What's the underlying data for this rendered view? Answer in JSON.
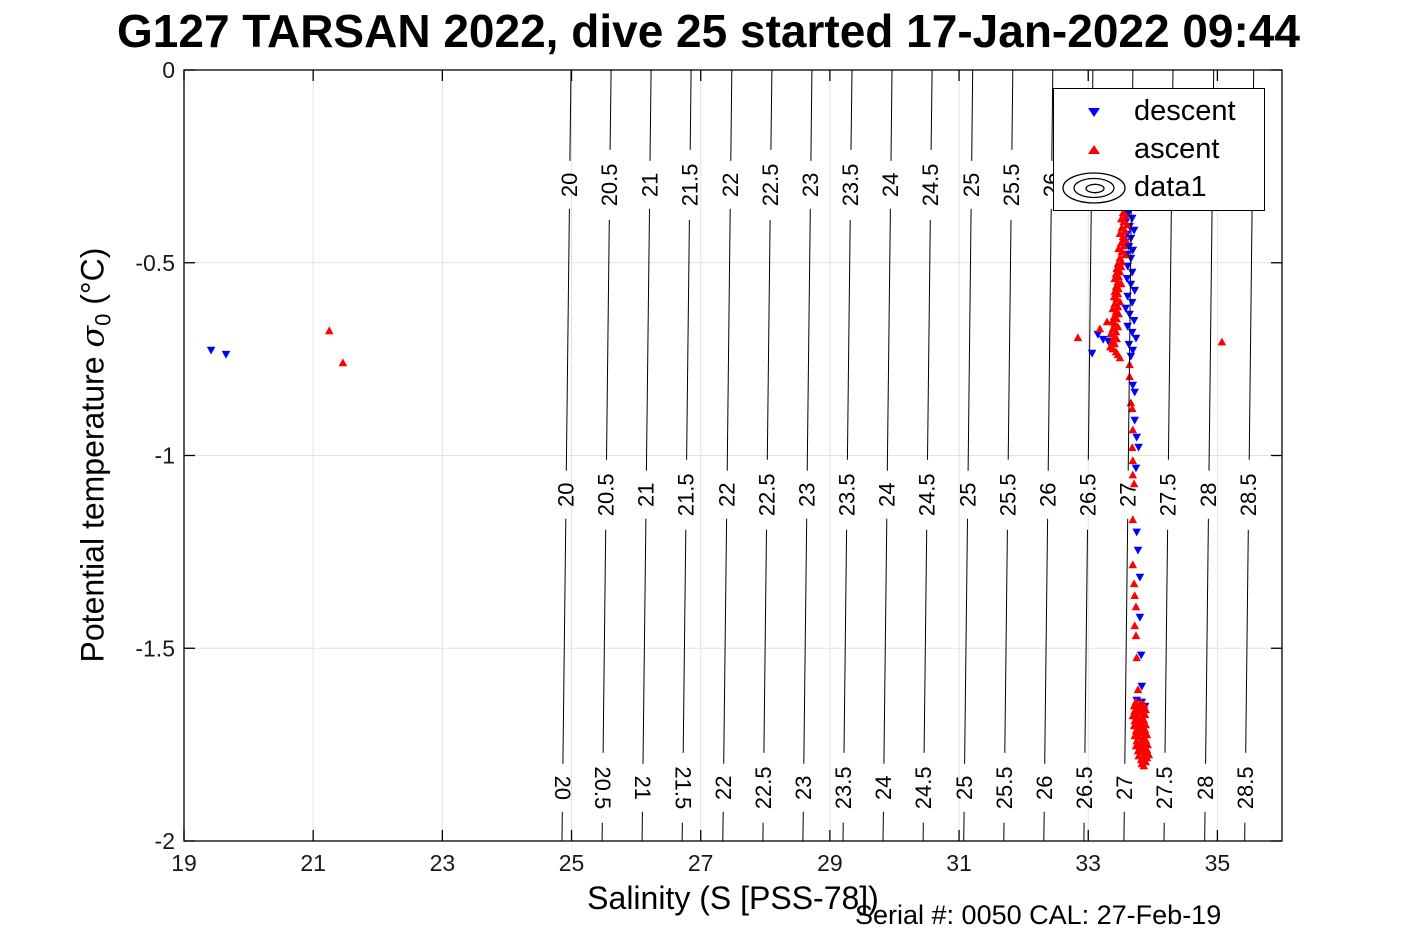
{
  "axes": {
    "xlabel": "Salinity (S [PSS-78])",
    "ylabel_prefix": "Potential temperature ",
    "ylabel_symbol": "σ",
    "ylabel_subscript": "0",
    "ylabel_suffix": " (°C)"
  },
  "chart_data": {
    "type": "scatter",
    "title": "G127 TARSAN 2022, dive 25 started 17-Jan-2022 09:44",
    "annotation": "Serial #: 0050  CAL: 27-Feb-19",
    "xlabel": "Salinity (S [PSS-78])",
    "ylabel": "Potential temperature sigma_0 (°C)",
    "xlim": [
      19,
      36
    ],
    "ylim": [
      -2,
      0
    ],
    "xticks": [
      19,
      21,
      23,
      25,
      27,
      29,
      31,
      33,
      35
    ],
    "yticks": [
      0,
      -0.5,
      -1,
      -1.5,
      -2
    ],
    "grid": true,
    "grid_color": "#e2e2e2",
    "axis_color": "#000000",
    "series": [
      {
        "name": "descent",
        "marker": "triangle-down",
        "color": "#0000ff",
        "points": [
          [
            19.42,
            -0.726
          ],
          [
            19.65,
            -0.737
          ],
          [
            33.15,
            -0.685
          ],
          [
            33.23,
            -0.698
          ],
          [
            33.31,
            -0.703
          ],
          [
            33.06,
            -0.734
          ],
          [
            33.61,
            -0.374
          ],
          [
            33.68,
            -0.384
          ],
          [
            33.58,
            -0.394
          ],
          [
            33.64,
            -0.405
          ],
          [
            33.71,
            -0.415
          ],
          [
            33.6,
            -0.425
          ],
          [
            33.66,
            -0.436
          ],
          [
            33.57,
            -0.446
          ],
          [
            33.63,
            -0.457
          ],
          [
            33.69,
            -0.467
          ],
          [
            33.6,
            -0.477
          ],
          [
            33.66,
            -0.488
          ],
          [
            33.61,
            -0.508
          ],
          [
            33.68,
            -0.524
          ],
          [
            33.6,
            -0.54
          ],
          [
            33.66,
            -0.555
          ],
          [
            33.72,
            -0.571
          ],
          [
            33.61,
            -0.586
          ],
          [
            33.68,
            -0.602
          ],
          [
            33.58,
            -0.617
          ],
          [
            33.64,
            -0.633
          ],
          [
            33.71,
            -0.649
          ],
          [
            33.61,
            -0.664
          ],
          [
            33.68,
            -0.68
          ],
          [
            33.74,
            -0.695
          ],
          [
            33.63,
            -0.711
          ],
          [
            33.69,
            -0.726
          ],
          [
            33.66,
            -0.742
          ],
          [
            33.69,
            -0.817
          ],
          [
            33.72,
            -0.835
          ],
          [
            33.72,
            -0.908
          ],
          [
            33.75,
            -0.952
          ],
          [
            33.78,
            -0.978
          ],
          [
            33.74,
            -1.032
          ],
          [
            33.75,
            -1.198
          ],
          [
            33.77,
            -1.245
          ],
          [
            33.8,
            -1.315
          ],
          [
            33.8,
            -1.419
          ],
          [
            33.82,
            -1.517
          ],
          [
            33.83,
            -1.598
          ],
          [
            33.75,
            -1.634
          ],
          [
            33.83,
            -1.639
          ],
          [
            33.88,
            -1.65
          ],
          [
            33.78,
            -1.658
          ],
          [
            33.85,
            -1.67
          ]
        ]
      },
      {
        "name": "ascent",
        "marker": "triangle-up",
        "color": "#ff0000",
        "points": [
          [
            21.25,
            -0.677
          ],
          [
            21.46,
            -0.76
          ],
          [
            32.84,
            -0.695
          ],
          [
            35.07,
            -0.706
          ],
          [
            33.29,
            -0.654
          ],
          [
            33.18,
            -0.672
          ],
          [
            33.54,
            -0.371
          ],
          [
            33.58,
            -0.379
          ],
          [
            33.51,
            -0.387
          ],
          [
            33.55,
            -0.394
          ],
          [
            33.6,
            -0.402
          ],
          [
            33.52,
            -0.41
          ],
          [
            33.57,
            -0.418
          ],
          [
            33.49,
            -0.425
          ],
          [
            33.54,
            -0.433
          ],
          [
            33.58,
            -0.441
          ],
          [
            33.51,
            -0.449
          ],
          [
            33.55,
            -0.457
          ],
          [
            33.47,
            -0.464
          ],
          [
            33.52,
            -0.472
          ],
          [
            33.57,
            -0.48
          ],
          [
            33.49,
            -0.488
          ],
          [
            33.52,
            -0.498
          ],
          [
            33.46,
            -0.503
          ],
          [
            33.51,
            -0.511
          ],
          [
            33.44,
            -0.516
          ],
          [
            33.49,
            -0.524
          ],
          [
            33.43,
            -0.529
          ],
          [
            33.47,
            -0.537
          ],
          [
            33.41,
            -0.542
          ],
          [
            33.46,
            -0.55
          ],
          [
            33.51,
            -0.555
          ],
          [
            33.43,
            -0.563
          ],
          [
            33.47,
            -0.568
          ],
          [
            33.41,
            -0.576
          ],
          [
            33.46,
            -0.581
          ],
          [
            33.4,
            -0.589
          ],
          [
            33.44,
            -0.594
          ],
          [
            33.49,
            -0.602
          ],
          [
            33.41,
            -0.607
          ],
          [
            33.46,
            -0.615
          ],
          [
            33.38,
            -0.62
          ],
          [
            33.43,
            -0.628
          ],
          [
            33.47,
            -0.633
          ],
          [
            33.4,
            -0.641
          ],
          [
            33.44,
            -0.646
          ],
          [
            33.37,
            -0.654
          ],
          [
            33.41,
            -0.659
          ],
          [
            33.46,
            -0.667
          ],
          [
            33.38,
            -0.672
          ],
          [
            33.43,
            -0.68
          ],
          [
            33.35,
            -0.685
          ],
          [
            33.4,
            -0.693
          ],
          [
            33.44,
            -0.698
          ],
          [
            33.37,
            -0.706
          ],
          [
            33.41,
            -0.711
          ],
          [
            33.34,
            -0.719
          ],
          [
            33.38,
            -0.724
          ],
          [
            33.43,
            -0.732
          ],
          [
            33.46,
            -0.739
          ],
          [
            33.49,
            -0.747
          ],
          [
            33.64,
            -0.765
          ],
          [
            33.64,
            -0.796
          ],
          [
            33.66,
            -0.864
          ],
          [
            33.68,
            -0.879
          ],
          [
            33.69,
            -0.934
          ],
          [
            33.68,
            -0.98
          ],
          [
            33.69,
            -1.014
          ],
          [
            33.69,
            -1.051
          ],
          [
            33.71,
            -1.074
          ],
          [
            33.69,
            -1.167
          ],
          [
            33.69,
            -1.284
          ],
          [
            33.71,
            -1.333
          ],
          [
            33.72,
            -1.364
          ],
          [
            33.74,
            -1.393
          ],
          [
            33.72,
            -1.442
          ],
          [
            33.74,
            -1.468
          ],
          [
            33.75,
            -1.525
          ],
          [
            33.77,
            -1.608
          ],
          [
            33.74,
            -1.639
          ],
          [
            33.82,
            -1.642
          ],
          [
            33.86,
            -1.647
          ],
          [
            33.71,
            -1.65
          ],
          [
            33.77,
            -1.652
          ],
          [
            33.85,
            -1.655
          ],
          [
            33.89,
            -1.66
          ],
          [
            33.72,
            -1.663
          ],
          [
            33.78,
            -1.665
          ],
          [
            33.83,
            -1.668
          ],
          [
            33.88,
            -1.673
          ],
          [
            33.69,
            -1.676
          ],
          [
            33.75,
            -1.678
          ],
          [
            33.82,
            -1.681
          ],
          [
            33.86,
            -1.686
          ],
          [
            33.72,
            -1.689
          ],
          [
            33.78,
            -1.691
          ],
          [
            33.85,
            -1.694
          ],
          [
            33.89,
            -1.699
          ],
          [
            33.71,
            -1.702
          ],
          [
            33.77,
            -1.704
          ],
          [
            33.83,
            -1.707
          ],
          [
            33.88,
            -1.712
          ],
          [
            33.74,
            -1.715
          ],
          [
            33.8,
            -1.717
          ],
          [
            33.86,
            -1.72
          ],
          [
            33.91,
            -1.725
          ],
          [
            33.72,
            -1.728
          ],
          [
            33.78,
            -1.73
          ],
          [
            33.85,
            -1.733
          ],
          [
            33.89,
            -1.738
          ],
          [
            33.75,
            -1.741
          ],
          [
            33.82,
            -1.743
          ],
          [
            33.88,
            -1.746
          ],
          [
            33.92,
            -1.751
          ],
          [
            33.74,
            -1.754
          ],
          [
            33.8,
            -1.756
          ],
          [
            33.86,
            -1.759
          ],
          [
            33.91,
            -1.764
          ],
          [
            33.77,
            -1.767
          ],
          [
            33.83,
            -1.769
          ],
          [
            33.89,
            -1.772
          ],
          [
            33.94,
            -1.777
          ],
          [
            33.78,
            -1.78
          ],
          [
            33.85,
            -1.782
          ],
          [
            33.91,
            -1.785
          ],
          [
            33.82,
            -1.79
          ],
          [
            33.86,
            -1.793
          ],
          [
            33.89,
            -1.795
          ],
          [
            33.83,
            -1.8
          ],
          [
            33.86,
            -1.806
          ]
        ]
      }
    ],
    "contours": {
      "label": "data1",
      "color": "#000000",
      "values": [
        20,
        20.5,
        21,
        21.5,
        22,
        22.5,
        23,
        23.5,
        24,
        24.5,
        25,
        25.5,
        26,
        26.5,
        27,
        27.5,
        28,
        28.5
      ],
      "salinity_mid": [
        24.93,
        25.55,
        26.17,
        26.79,
        27.42,
        28.04,
        28.66,
        29.28,
        29.9,
        30.52,
        31.15,
        31.77,
        32.39,
        33.01,
        33.63,
        34.25,
        34.88,
        35.5
      ],
      "label_rows_theta": [
        -0.298,
        -1.102,
        -1.862
      ],
      "top_row_max_value": 26,
      "flipped_bottom_labels": [
        20,
        20.5,
        21,
        21.5
      ]
    }
  }
}
